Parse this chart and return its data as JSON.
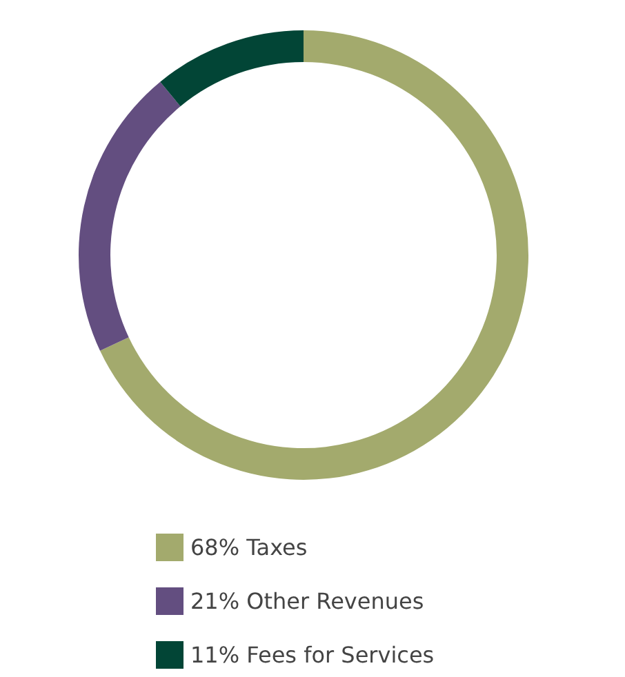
{
  "chart_data": {
    "type": "donut",
    "categories": [
      "68% Taxes",
      "21% Other Revenues",
      "11% Fees for Services"
    ],
    "values": [
      68,
      21,
      11
    ],
    "colors": [
      "#a3aa6d",
      "#634e80",
      "#024536"
    ],
    "legend": "bottom"
  }
}
